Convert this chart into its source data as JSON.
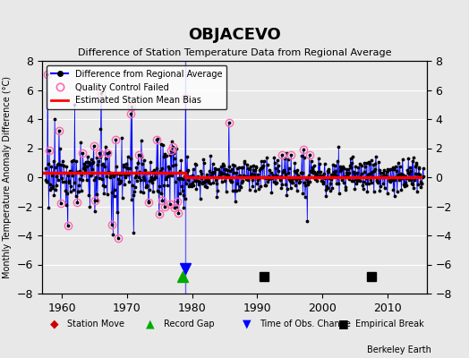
{
  "title": "OBJACEVO",
  "subtitle": "Difference of Station Temperature Data from Regional Average",
  "xlabel": "",
  "ylabel": "Monthly Temperature Anomaly Difference (°C)",
  "xlim": [
    1957,
    2016
  ],
  "ylim": [
    -8,
    8
  ],
  "yticks": [
    -8,
    -6,
    -4,
    -2,
    0,
    2,
    4,
    6,
    8
  ],
  "xticks": [
    1960,
    1970,
    1980,
    1990,
    2000,
    2010
  ],
  "background_color": "#e8e8e8",
  "plot_background": "#e8e8e8",
  "grid_color": "#ffffff",
  "line_color": "#0000ff",
  "dot_color": "#000000",
  "qc_color": "#ff69b4",
  "bias_color": "#ff0000",
  "watermark": "Berkeley Earth",
  "event_markers": {
    "station_move": [],
    "record_gap": [
      1978.5
    ],
    "time_obs_change": [
      1979.0
    ],
    "empirical_break": [
      1991.0,
      2007.5
    ]
  },
  "bias_line": {
    "x": [
      1957,
      1979,
      1979,
      2015
    ],
    "y": [
      0.3,
      0.3,
      0.0,
      0.0
    ]
  }
}
